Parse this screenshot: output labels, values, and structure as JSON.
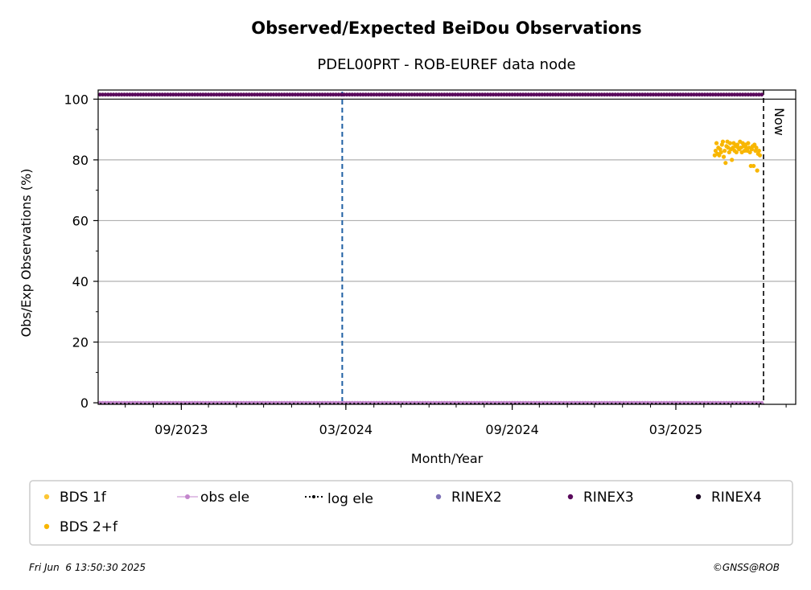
{
  "chart_data": {
    "type": "scatter",
    "title": "Observed/Expected BeiDou Observations",
    "subtitle": "PDEL00PRT - ROB-EUREF data node",
    "xlabel": "Month/Year",
    "ylabel": "Obs/Exp Observations (%)",
    "xlim": [
      "2023-06-01",
      "2025-07-01"
    ],
    "ylim": [
      -0.5,
      103
    ],
    "x_tick_labels": [
      "09/2023",
      "03/2024",
      "09/2024",
      "03/2025"
    ],
    "x_ticks": [
      "2023-09-01",
      "2024-03-01",
      "2024-09-01",
      "2025-03-01"
    ],
    "y_ticks": [
      0,
      20,
      40,
      60,
      80,
      100
    ],
    "grid": "horizontal",
    "now_label": "Now",
    "now_date": "2025-06-06",
    "event_line_date": "2024-02-26",
    "colors": {
      "bds_1f": "#fcc634",
      "bds_2f": "#f8b600",
      "obs_ele": "#c386cc",
      "log_ele": "#000000",
      "rinex2": "#7e72b6",
      "rinex3": "#5a0a5c",
      "rinex4": "#1c0a24",
      "event_line": "#1f5fa3"
    },
    "series": [
      {
        "name": "RINEX3",
        "color": "#5a0a5c",
        "constant_y": 101.5,
        "x_start": "2023-06-03",
        "x_end": "2025-06-04"
      },
      {
        "name": "obs ele",
        "color": "#c386cc",
        "constant_y": 0,
        "x_start": "2023-06-03",
        "x_end": "2025-06-04"
      },
      {
        "name": "log ele",
        "color": "#000000",
        "constant_y": 0,
        "x_start": "2023-06-03",
        "x_end": "2025-06-04"
      },
      {
        "name": "BDS 2+f",
        "color": "#f8b600",
        "points": [
          [
            "2025-04-13",
            81.5
          ],
          [
            "2025-04-14",
            83.0
          ],
          [
            "2025-04-15",
            85.5
          ],
          [
            "2025-04-16",
            82.0
          ],
          [
            "2025-04-17",
            84.0
          ],
          [
            "2025-04-18",
            81.5
          ],
          [
            "2025-04-19",
            83.5
          ],
          [
            "2025-04-20",
            82.5
          ],
          [
            "2025-04-21",
            85.0
          ],
          [
            "2025-04-22",
            86.0
          ],
          [
            "2025-04-23",
            81.0
          ],
          [
            "2025-04-24",
            83.0
          ],
          [
            "2025-04-25",
            79.0
          ],
          [
            "2025-04-26",
            84.5
          ],
          [
            "2025-04-27",
            86.0
          ],
          [
            "2025-04-28",
            84.0
          ],
          [
            "2025-04-29",
            82.5
          ],
          [
            "2025-04-30",
            85.5
          ],
          [
            "2025-05-01",
            83.5
          ],
          [
            "2025-05-02",
            80.0
          ],
          [
            "2025-05-03",
            84.0
          ],
          [
            "2025-05-04",
            85.5
          ],
          [
            "2025-05-05",
            83.0
          ],
          [
            "2025-05-06",
            84.5
          ],
          [
            "2025-05-07",
            82.5
          ],
          [
            "2025-05-08",
            85.0
          ],
          [
            "2025-05-09",
            84.0
          ],
          [
            "2025-05-10",
            83.5
          ],
          [
            "2025-05-11",
            86.0
          ],
          [
            "2025-05-12",
            84.0
          ],
          [
            "2025-05-13",
            82.5
          ],
          [
            "2025-05-14",
            85.5
          ],
          [
            "2025-05-15",
            84.5
          ],
          [
            "2025-05-16",
            83.0
          ],
          [
            "2025-05-17",
            85.0
          ],
          [
            "2025-05-18",
            84.0
          ],
          [
            "2025-05-19",
            83.0
          ],
          [
            "2025-05-20",
            85.5
          ],
          [
            "2025-05-21",
            84.0
          ],
          [
            "2025-05-22",
            82.5
          ],
          [
            "2025-05-23",
            78.0
          ],
          [
            "2025-05-24",
            83.5
          ],
          [
            "2025-05-25",
            84.5
          ],
          [
            "2025-05-26",
            78.0
          ],
          [
            "2025-05-27",
            85.0
          ],
          [
            "2025-05-28",
            83.0
          ],
          [
            "2025-05-29",
            84.0
          ],
          [
            "2025-05-30",
            76.5
          ],
          [
            "2025-05-31",
            82.0
          ],
          [
            "2025-06-01",
            83.0
          ],
          [
            "2025-06-02",
            81.5
          ]
        ]
      }
    ],
    "legend": [
      {
        "label": "BDS 1f",
        "marker": "dot",
        "color": "#fcc634"
      },
      {
        "label": "obs ele",
        "marker": "line-dot",
        "color": "#c386cc"
      },
      {
        "label": "log ele",
        "marker": "dotted-line",
        "color": "#000000"
      },
      {
        "label": "RINEX2",
        "marker": "dot",
        "color": "#7e72b6"
      },
      {
        "label": "RINEX3",
        "marker": "dot",
        "color": "#5a0a5c"
      },
      {
        "label": "RINEX4",
        "marker": "dot",
        "color": "#1c0a24"
      },
      {
        "label": "BDS 2+f",
        "marker": "dot",
        "color": "#f8b600"
      }
    ],
    "legend_placement": "below plot"
  },
  "footer": {
    "timestamp": "Fri Jun  6 13:50:30 2025",
    "credit": "©GNSS@ROB"
  }
}
